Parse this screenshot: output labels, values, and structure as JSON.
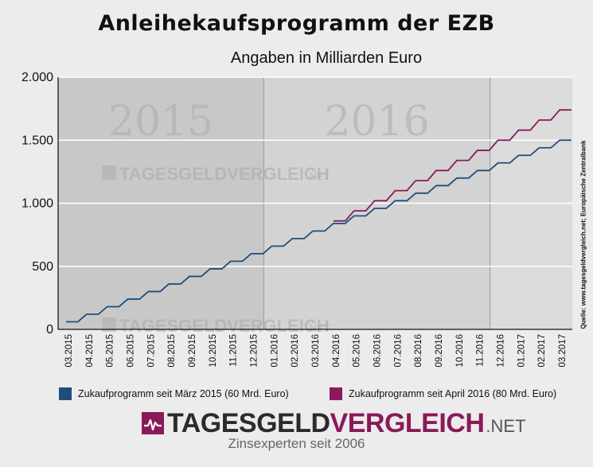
{
  "title": "Anleihekaufsprogramm der EZB",
  "subtitle": "Angaben in Milliarden Euro",
  "source": "Quelle: www.tagesgeldvergleich.net; Europäische Zentralbank",
  "brand": {
    "name_part1": "TAGESGELD",
    "name_part2": "VERGLEICH",
    "suffix": ".NET",
    "tagline": "Zinsexperten seit 2006",
    "color_dark": "#2b2b2b",
    "color_accent": "#8a1a5a"
  },
  "watermark": {
    "text": "TAGESGELDVERGLEICH",
    "suffix": ".NET"
  },
  "year_labels": [
    "2015",
    "2016"
  ],
  "chart_data": {
    "type": "line",
    "step": true,
    "title": "Anleihekaufsprogramm der EZB",
    "subtitle": "Angaben in Milliarden Euro",
    "ylim": [
      0,
      2000
    ],
    "yticks": [
      0,
      500,
      1000,
      1500,
      2000
    ],
    "ytick_labels": [
      "0",
      "500",
      "1.000",
      "1.500",
      "2.000"
    ],
    "x_labels": [
      "03.2015",
      "04.2015",
      "05.2015",
      "06.2015",
      "07.2015",
      "08.2015",
      "09.2015",
      "10.2015",
      "11.2015",
      "12.2015",
      "01.2016",
      "02.2016",
      "03.2016",
      "04.2016",
      "05.2016",
      "06.2016",
      "07.2016",
      "08.2016",
      "09.2016",
      "10.2016",
      "11.2016",
      "12.2016",
      "01.2017",
      "02.2017",
      "03.2017"
    ],
    "grid": true,
    "legend_position": "bottom",
    "series": [
      {
        "name": "Zukaufprogramm seit März 2015 (60 Mrd. Euro)",
        "color": "#1f4e7d",
        "values": [
          60,
          120,
          180,
          240,
          300,
          360,
          420,
          480,
          540,
          600,
          660,
          720,
          780,
          840,
          900,
          960,
          1020,
          1080,
          1140,
          1200,
          1260,
          1320,
          1380,
          1440,
          1500
        ]
      },
      {
        "name": "Zukaufprogramm seit April 2016 (80 Mrd. Euro)",
        "color": "#8a1a5a",
        "start_index": 13,
        "values": [
          860,
          940,
          1020,
          1100,
          1180,
          1260,
          1340,
          1420,
          1500,
          1580,
          1660,
          1740
        ]
      }
    ]
  }
}
